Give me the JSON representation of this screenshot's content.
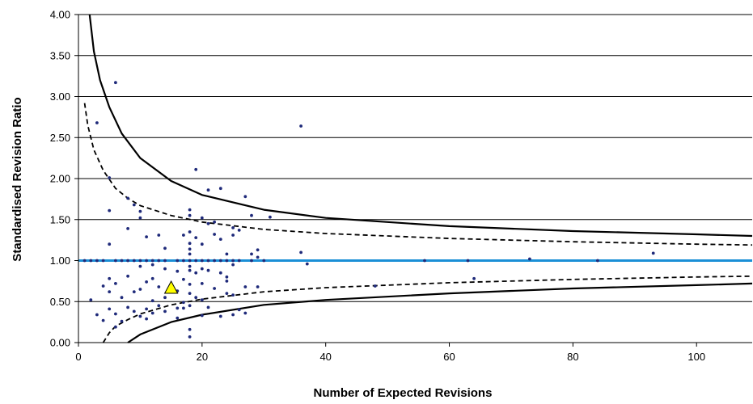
{
  "chart_data": {
    "type": "scatter",
    "title": "",
    "xlabel": "Number of Expected Revisions",
    "ylabel": "Standardised Revision Ratio",
    "xlim": [
      0,
      109
    ],
    "ylim": [
      0,
      4
    ],
    "x_ticks": [
      0,
      20,
      40,
      60,
      80,
      100
    ],
    "y_ticks": [
      0,
      0.5,
      1,
      1.5,
      2,
      2.5,
      3,
      3.5,
      4
    ],
    "y_tick_labels": [
      "0.00",
      "0.50",
      "1.00",
      "1.50",
      "2.00",
      "2.50",
      "3.00",
      "3.50",
      "4.00"
    ],
    "grid": "horizontal",
    "legend": "none",
    "colors": {
      "points": "#1f2a7a",
      "reference_line": "#1a8fd6",
      "limits": "#000000",
      "highlight_fill": "#ffff00"
    },
    "reference_line": {
      "y": 1.0
    },
    "control_limits": {
      "upper_outer": [
        [
          1.8,
          4.0
        ],
        [
          2.5,
          3.55
        ],
        [
          3.5,
          3.2
        ],
        [
          5,
          2.87
        ],
        [
          7,
          2.55
        ],
        [
          10,
          2.25
        ],
        [
          15,
          1.97
        ],
        [
          20,
          1.8
        ],
        [
          30,
          1.62
        ],
        [
          40,
          1.52
        ],
        [
          60,
          1.42
        ],
        [
          80,
          1.36
        ],
        [
          100,
          1.32
        ],
        [
          109,
          1.3
        ]
      ],
      "upper_inner": [
        [
          1,
          2.92
        ],
        [
          1.5,
          2.65
        ],
        [
          2.5,
          2.35
        ],
        [
          4,
          2.1
        ],
        [
          6,
          1.88
        ],
        [
          8,
          1.76
        ],
        [
          10,
          1.67
        ],
        [
          15,
          1.55
        ],
        [
          20,
          1.47
        ],
        [
          30,
          1.38
        ],
        [
          40,
          1.33
        ],
        [
          60,
          1.27
        ],
        [
          80,
          1.23
        ],
        [
          100,
          1.2
        ],
        [
          109,
          1.19
        ]
      ],
      "lower_inner": [
        [
          4,
          0.0
        ],
        [
          5,
          0.12
        ],
        [
          6,
          0.2
        ],
        [
          8,
          0.28
        ],
        [
          10,
          0.35
        ],
        [
          15,
          0.46
        ],
        [
          20,
          0.53
        ],
        [
          30,
          0.62
        ],
        [
          40,
          0.67
        ],
        [
          60,
          0.73
        ],
        [
          80,
          0.77
        ],
        [
          100,
          0.8
        ],
        [
          109,
          0.81
        ]
      ],
      "lower_outer": [
        [
          8,
          0.0
        ],
        [
          10,
          0.1
        ],
        [
          15,
          0.25
        ],
        [
          20,
          0.34
        ],
        [
          30,
          0.46
        ],
        [
          40,
          0.52
        ],
        [
          60,
          0.6
        ],
        [
          80,
          0.66
        ],
        [
          100,
          0.7
        ],
        [
          109,
          0.72
        ]
      ]
    },
    "points": [
      [
        1,
        1.0
      ],
      [
        2,
        1.0
      ],
      [
        2,
        0.52
      ],
      [
        3,
        2.68
      ],
      [
        3,
        1.0
      ],
      [
        3,
        0.34
      ],
      [
        4,
        1.0
      ],
      [
        4,
        0.69
      ],
      [
        4,
        0.27
      ],
      [
        5,
        2.01
      ],
      [
        5,
        1.61
      ],
      [
        5,
        1.2
      ],
      [
        5,
        0.78
      ],
      [
        5,
        0.62
      ],
      [
        5,
        0.41
      ],
      [
        6,
        3.17
      ],
      [
        6,
        1.0
      ],
      [
        6,
        0.72
      ],
      [
        6,
        0.35
      ],
      [
        6,
        0.19
      ],
      [
        7,
        1.0
      ],
      [
        7,
        0.55
      ],
      [
        7,
        0.26
      ],
      [
        8,
        1.76
      ],
      [
        8,
        1.39
      ],
      [
        8,
        1.0
      ],
      [
        8,
        0.81
      ],
      [
        8,
        0.43
      ],
      [
        9,
        1.68
      ],
      [
        9,
        1.0
      ],
      [
        9,
        0.62
      ],
      [
        9,
        0.38
      ],
      [
        10,
        1.6
      ],
      [
        10,
        1.52
      ],
      [
        10,
        1.0
      ],
      [
        10,
        0.93
      ],
      [
        10,
        0.65
      ],
      [
        10,
        0.32
      ],
      [
        11,
        1.29
      ],
      [
        11,
        1.0
      ],
      [
        11,
        0.74
      ],
      [
        11,
        0.41
      ],
      [
        11,
        0.29
      ],
      [
        12,
        1.0
      ],
      [
        12,
        0.95
      ],
      [
        12,
        0.78
      ],
      [
        12,
        0.51
      ],
      [
        12,
        0.36
      ],
      [
        13,
        1.31
      ],
      [
        13,
        1.0
      ],
      [
        13,
        0.68
      ],
      [
        13,
        0.45
      ],
      [
        14,
        1.15
      ],
      [
        14,
        1.0
      ],
      [
        14,
        0.9
      ],
      [
        14,
        0.55
      ],
      [
        14,
        0.38
      ],
      [
        16,
        1.0
      ],
      [
        16,
        0.87
      ],
      [
        16,
        0.63
      ],
      [
        16,
        0.42
      ],
      [
        16,
        0.3
      ],
      [
        17,
        1.31
      ],
      [
        17,
        1.0
      ],
      [
        17,
        0.77
      ],
      [
        17,
        0.49
      ],
      [
        17,
        0.42
      ],
      [
        18,
        1.62
      ],
      [
        18,
        1.55
      ],
      [
        18,
        1.35
      ],
      [
        18,
        1.21
      ],
      [
        18,
        1.14
      ],
      [
        18,
        1.08
      ],
      [
        18,
        1.0
      ],
      [
        18,
        0.93
      ],
      [
        18,
        0.88
      ],
      [
        18,
        0.71
      ],
      [
        18,
        0.6
      ],
      [
        18,
        0.45
      ],
      [
        18,
        0.16
      ],
      [
        18,
        0.07
      ],
      [
        19,
        2.11
      ],
      [
        19,
        1.28
      ],
      [
        19,
        1.0
      ],
      [
        19,
        0.85
      ],
      [
        19,
        0.55
      ],
      [
        20,
        1.52
      ],
      [
        20,
        1.2
      ],
      [
        20,
        1.0
      ],
      [
        20,
        0.9
      ],
      [
        20,
        0.72
      ],
      [
        20,
        0.52
      ],
      [
        20,
        0.33
      ],
      [
        21,
        1.86
      ],
      [
        21,
        1.45
      ],
      [
        21,
        1.0
      ],
      [
        21,
        0.88
      ],
      [
        21,
        0.43
      ],
      [
        22,
        1.47
      ],
      [
        22,
        1.32
      ],
      [
        22,
        1.0
      ],
      [
        22,
        0.66
      ],
      [
        23,
        1.88
      ],
      [
        23,
        1.26
      ],
      [
        23,
        1.0
      ],
      [
        23,
        0.85
      ],
      [
        23,
        0.32
      ],
      [
        24,
        1.08
      ],
      [
        24,
        1.0
      ],
      [
        24,
        0.8
      ],
      [
        24,
        0.75
      ],
      [
        24,
        0.6
      ],
      [
        25,
        1.4
      ],
      [
        25,
        1.31
      ],
      [
        25,
        1.0
      ],
      [
        25,
        0.95
      ],
      [
        25,
        0.58
      ],
      [
        25,
        0.34
      ],
      [
        26,
        1.37
      ],
      [
        26,
        1.0
      ],
      [
        26,
        0.4
      ],
      [
        27,
        1.78
      ],
      [
        27,
        0.68
      ],
      [
        27,
        0.36
      ],
      [
        28,
        1.55
      ],
      [
        28,
        1.08
      ],
      [
        28,
        1.0
      ],
      [
        29,
        1.13
      ],
      [
        29,
        1.04
      ],
      [
        29,
        0.68
      ],
      [
        30,
        1.0
      ],
      [
        31,
        1.53
      ],
      [
        36,
        2.64
      ],
      [
        36,
        1.1
      ],
      [
        37,
        0.96
      ],
      [
        48,
        0.69
      ],
      [
        56,
        1.0
      ],
      [
        63,
        1.0
      ],
      [
        64,
        0.78
      ],
      [
        73,
        1.02
      ],
      [
        84,
        1.0
      ],
      [
        93,
        1.09
      ]
    ],
    "highlight_point": {
      "x": 15,
      "y": 0.66,
      "shape": "triangle"
    }
  }
}
